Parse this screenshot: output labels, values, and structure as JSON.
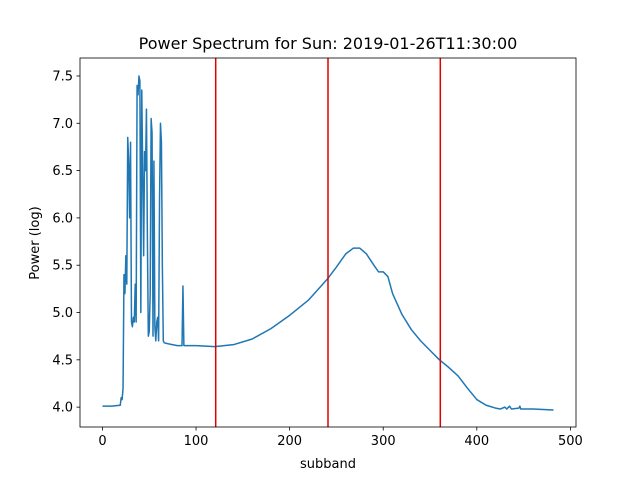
{
  "chart_data": {
    "type": "line",
    "title": "Power Spectrum for Sun: 2019-01-26T11:30:00",
    "xlabel": "subband",
    "ylabel": "Power (log)",
    "xlim": [
      -24,
      506
    ],
    "ylim": [
      3.79,
      7.69
    ],
    "xticks": [
      0,
      100,
      200,
      300,
      400,
      500
    ],
    "yticks": [
      {
        "value": 4,
        "label": "4.0"
      },
      4.5,
      {
        "value": 5,
        "label": "5.0"
      },
      5.5,
      {
        "value": 6,
        "label": "6.0"
      },
      6.5,
      {
        "value": 7,
        "label": "7.0"
      },
      7.5
    ],
    "vlines": [
      121,
      241,
      361
    ],
    "vline_color": "#e00000",
    "series": [
      {
        "color": "#1f77b4",
        "x": [
          0,
          10,
          19,
          20,
          21,
          22,
          23,
          24,
          25,
          26,
          27,
          28,
          29,
          30,
          31,
          32,
          33,
          34,
          35,
          36,
          37,
          38,
          39,
          40,
          41,
          42,
          43,
          44,
          45,
          46,
          47,
          48,
          49,
          50,
          51,
          52,
          53,
          54,
          55,
          56,
          57,
          58,
          59,
          60,
          61,
          62,
          63,
          64,
          65,
          66,
          70,
          80,
          85,
          86,
          87,
          100,
          120,
          140,
          160,
          180,
          200,
          220,
          240,
          250,
          260,
          268,
          275,
          282,
          290,
          295,
          300,
          305,
          310,
          320,
          330,
          340,
          350,
          360,
          370,
          380,
          390,
          400,
          410,
          420,
          425,
          430,
          432,
          435,
          437,
          445,
          446,
          447,
          460,
          482
        ],
        "values": [
          4.01,
          4.01,
          4.02,
          4.1,
          4.08,
          4.2,
          5.4,
          5.2,
          5.6,
          5.3,
          6.85,
          6.6,
          6.0,
          6.8,
          4.9,
          4.85,
          4.95,
          4.9,
          5.3,
          4.9,
          7.4,
          7.3,
          7.5,
          7.45,
          5.0,
          7.35,
          6.5,
          5.6,
          6.7,
          6.5,
          7.15,
          5.8,
          4.75,
          4.8,
          5.2,
          7.05,
          6.9,
          4.75,
          6.6,
          4.85,
          4.7,
          4.9,
          4.95,
          4.7,
          6.2,
          7.0,
          6.8,
          5.5,
          4.7,
          4.68,
          4.67,
          4.65,
          4.65,
          5.28,
          4.65,
          4.65,
          4.64,
          4.66,
          4.72,
          4.83,
          4.97,
          5.13,
          5.35,
          5.48,
          5.62,
          5.68,
          5.68,
          5.62,
          5.5,
          5.43,
          5.43,
          5.38,
          5.2,
          4.98,
          4.82,
          4.7,
          4.6,
          4.5,
          4.42,
          4.33,
          4.2,
          4.08,
          4.02,
          3.99,
          3.98,
          4.0,
          3.98,
          4.01,
          3.98,
          3.99,
          4.01,
          3.98,
          3.98,
          3.97
        ]
      }
    ]
  }
}
